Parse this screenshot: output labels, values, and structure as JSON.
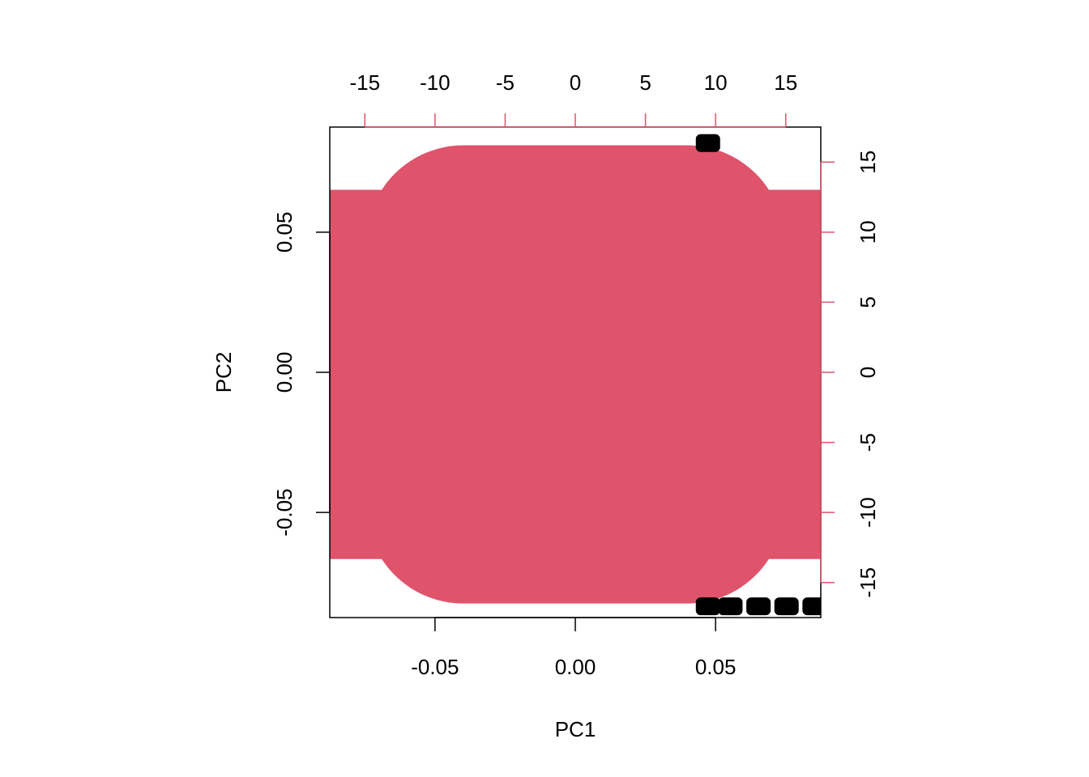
{
  "chart_data": {
    "type": "scatter",
    "title": "",
    "xlabel": "PC1",
    "ylabel": "PC2",
    "primary_axes": {
      "xlim": [
        -0.0875,
        0.0875
      ],
      "ylim": [
        -0.0875,
        0.0875
      ],
      "x_ticks": [
        -0.05,
        0.0,
        0.05
      ],
      "x_tick_labels": [
        "-0.05",
        "0.00",
        "0.05"
      ],
      "y_ticks": [
        -0.05,
        0.0,
        0.05
      ],
      "y_tick_labels": [
        "-0.05",
        "0.00",
        "0.05"
      ],
      "color": "#000000"
    },
    "secondary_axes": {
      "xlim": [
        -17.5,
        17.5
      ],
      "ylim": [
        -17.5,
        17.5
      ],
      "x_ticks": [
        -15,
        -10,
        -5,
        0,
        5,
        10,
        15
      ],
      "x_tick_labels": [
        "-15",
        "-10",
        "-5",
        "0",
        "5",
        "10",
        "15"
      ],
      "y_ticks": [
        -15,
        -10,
        -5,
        0,
        5,
        10,
        15
      ],
      "y_tick_labels": [
        "-15",
        "-10",
        "-5",
        "0",
        "5",
        "10",
        "15"
      ],
      "color": "#DF536B"
    },
    "series": [
      {
        "role": "variable-labels",
        "color": "#DF536B",
        "note_region_secondary_units": {
          "x": [
            -17.5,
            17.5
          ],
          "y": [
            -16.5,
            16.2
          ]
        }
      },
      {
        "role": "observation-labels",
        "color": "#000000",
        "points": [
          {
            "x": 0.047,
            "y": 0.0818
          },
          {
            "x": 0.047,
            "y": -0.0835
          },
          {
            "x": 0.055,
            "y": -0.0835
          },
          {
            "x": 0.065,
            "y": -0.0835
          },
          {
            "x": 0.075,
            "y": -0.0835
          },
          {
            "x": 0.085,
            "y": -0.0835
          }
        ]
      }
    ],
    "grid": false,
    "legend": "none"
  }
}
